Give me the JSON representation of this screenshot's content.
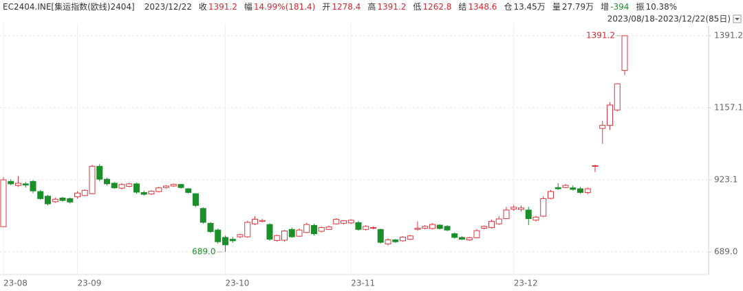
{
  "header": {
    "symbol": "EC2404.INE[集运指数(欧线)2404]",
    "date": "2023/12/22",
    "fields": [
      {
        "label": "收",
        "value": "1391.2",
        "color": "#d9252f"
      },
      {
        "label": "幅",
        "value": "14.99%(181.4)",
        "color": "#d9252f"
      },
      {
        "label": "开",
        "value": "1278.4",
        "color": "#d9252f"
      },
      {
        "label": "高",
        "value": "1391.2",
        "color": "#d9252f"
      },
      {
        "label": "低",
        "value": "1262.8",
        "color": "#d9252f"
      },
      {
        "label": "结",
        "value": "1348.6",
        "color": "#d9252f"
      },
      {
        "label": "仓",
        "value": "13.45万",
        "color": "#333333"
      },
      {
        "label": "量",
        "value": "27.79万",
        "color": "#333333"
      },
      {
        "label": "增",
        "value": "-394",
        "color": "#1a8f2a"
      },
      {
        "label": "振",
        "value": "10.38%",
        "color": "#333333"
      }
    ],
    "range": "2023/08/18-2023/12/22(85日)"
  },
  "chart_data": {
    "type": "candlestick",
    "categories": [
      "23-08",
      null,
      null,
      null,
      null,
      null,
      null,
      null,
      null,
      null,
      "23-09",
      null,
      null,
      null,
      null,
      null,
      null,
      null,
      null,
      null,
      null,
      null,
      null,
      null,
      null,
      null,
      null,
      null,
      null,
      null,
      "23-10",
      null,
      null,
      null,
      null,
      null,
      null,
      null,
      null,
      null,
      null,
      null,
      null,
      null,
      null,
      null,
      null,
      "23-11",
      null,
      null,
      null,
      null,
      null,
      null,
      null,
      null,
      null,
      null,
      null,
      null,
      null,
      null,
      null,
      null,
      null,
      null,
      null,
      null,
      null,
      "23-12",
      null,
      null,
      null,
      null,
      null,
      null,
      null,
      null,
      null,
      null,
      null,
      null,
      null,
      null,
      null
    ],
    "open": [
      771,
      918,
      905,
      910,
      918,
      885,
      870,
      852,
      864,
      862,
      868,
      872,
      878,
      967,
      925,
      912,
      896,
      902,
      910,
      882,
      877,
      885,
      898,
      903,
      908,
      894,
      878,
      830,
      782,
      760,
      736,
      730,
      738,
      738,
      780,
      788,
      778,
      726,
      727,
      762,
      740,
      752,
      775,
      756,
      762,
      780,
      782,
      783,
      784,
      762,
      767,
      762,
      715,
      728,
      725,
      730,
      762,
      766,
      765,
      776,
      772,
      748,
      736,
      728,
      735,
      766,
      768,
      780,
      797,
      828,
      827,
      825,
      792,
      805,
      863,
      898,
      898,
      897,
      894,
      882,
      967,
      1090,
      1100,
      1150,
      1278.4
    ],
    "high": [
      932,
      925,
      935,
      916,
      922,
      890,
      874,
      866,
      868,
      866,
      886,
      892,
      972,
      974,
      930,
      916,
      912,
      914,
      914,
      888,
      889,
      900,
      906,
      911,
      910,
      896,
      880,
      834,
      786,
      765,
      742,
      738,
      748,
      790,
      805,
      796,
      782,
      745,
      760,
      768,
      765,
      784,
      780,
      772,
      775,
      798,
      792,
      795,
      790,
      776,
      772,
      764,
      733,
      731,
      740,
      744,
      788,
      776,
      782,
      779,
      776,
      752,
      740,
      738,
      763,
      775,
      794,
      805,
      835,
      842,
      840,
      836,
      806,
      870,
      890,
      912,
      910,
      905,
      900,
      898,
      972,
      1115,
      1175,
      1236,
      1391.2
    ],
    "low": [
      771,
      905,
      900,
      898,
      880,
      858,
      840,
      848,
      852,
      846,
      862,
      870,
      876,
      918,
      905,
      894,
      892,
      899,
      878,
      872,
      874,
      882,
      895,
      900,
      894,
      878,
      835,
      780,
      750,
      716,
      689,
      718,
      734,
      735,
      776,
      785,
      725,
      722,
      722,
      735,
      738,
      750,
      742,
      752,
      760,
      778,
      778,
      780,
      758,
      758,
      763,
      716,
      710,
      718,
      722,
      728,
      758,
      762,
      762,
      762,
      756,
      732,
      728,
      725,
      733,
      762,
      765,
      777,
      795,
      822,
      820,
      776,
      788,
      802,
      860,
      890,
      896,
      888,
      878,
      876,
      948,
      1040,
      1085,
      1145,
      1262.8
    ],
    "close": [
      923,
      910,
      912,
      906,
      887,
      862,
      845,
      860,
      856,
      851,
      880,
      889,
      967,
      925,
      910,
      897,
      908,
      910,
      883,
      876,
      886,
      897,
      903,
      908,
      898,
      882,
      840,
      785,
      755,
      722,
      712,
      725,
      745,
      785,
      795,
      791,
      730,
      742,
      757,
      738,
      760,
      778,
      748,
      768,
      770,
      795,
      790,
      792,
      762,
      772,
      768,
      720,
      728,
      722,
      737,
      741,
      766,
      772,
      778,
      765,
      760,
      736,
      730,
      735,
      758,
      772,
      788,
      796,
      825,
      834,
      832,
      797,
      802,
      862,
      885,
      894,
      905,
      892,
      882,
      894,
      969,
      1100,
      1166,
      1235,
      1391.2
    ],
    "up_color": "#e0323c",
    "down_color": "#1a8f2a",
    "ylim": [
      615.5,
      1431.3
    ],
    "yticks": [
      {
        "value": 689,
        "label": "689.0"
      },
      923.1,
      1157.1,
      1391.2
    ],
    "grid": true,
    "max_label": "1391.2",
    "min_label": "689.0"
  }
}
